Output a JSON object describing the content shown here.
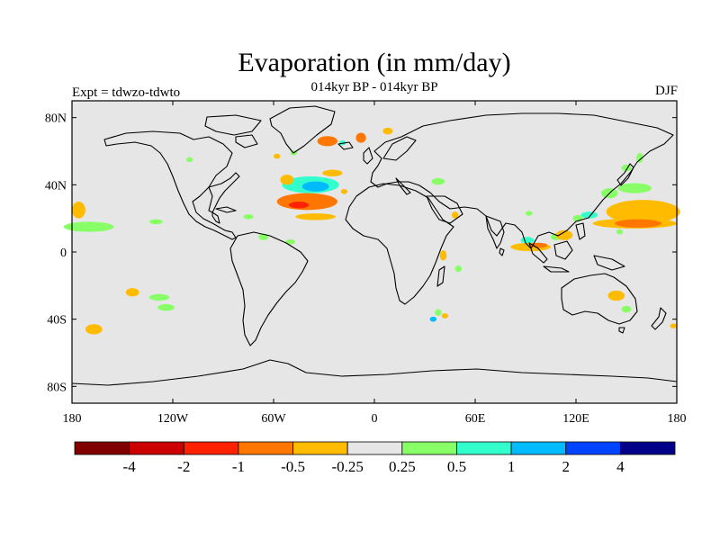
{
  "title": "Evaporation (in mm/day)",
  "subtitle": "014kyr BP - 014kyr BP",
  "left_label": "Expt = tdwzo-tdwto",
  "right_label": "DJF",
  "x_ticks": [
    {
      "label": "180",
      "value": -180
    },
    {
      "label": "120W",
      "value": -120
    },
    {
      "label": "60W",
      "value": -60
    },
    {
      "label": "0",
      "value": 0
    },
    {
      "label": "60E",
      "value": 60
    },
    {
      "label": "120E",
      "value": 120
    },
    {
      "label": "180",
      "value": 180
    }
  ],
  "y_ticks": [
    {
      "label": "80N",
      "value": 80
    },
    {
      "label": "40N",
      "value": 40
    },
    {
      "label": "0",
      "value": 0
    },
    {
      "label": "40S",
      "value": -40
    },
    {
      "label": "80S",
      "value": -80
    }
  ],
  "colorbar": {
    "colors": [
      "#800000",
      "#cc0000",
      "#ff2200",
      "#ff7700",
      "#ffbb00",
      "#e6e6e6",
      "#88ff66",
      "#33ffcc",
      "#00bbff",
      "#0044ff",
      "#000088"
    ],
    "labels": [
      "-4",
      "-2",
      "-1",
      "-0.5",
      "-0.25",
      "0.25",
      "0.5",
      "1",
      "2",
      "4"
    ]
  },
  "colors": {
    "land_ocean_fill": "#e6e6e6",
    "coast": "#000000"
  },
  "anomalies": [
    {
      "lon": -170,
      "lat": 15,
      "rx": 15,
      "ry": 3,
      "color": "#88ff66"
    },
    {
      "lon": -176,
      "lat": 25,
      "rx": 4,
      "ry": 5,
      "color": "#ffbb00"
    },
    {
      "lon": -130,
      "lat": 18,
      "rx": 4,
      "ry": 1.5,
      "color": "#88ff66"
    },
    {
      "lon": -144,
      "lat": -24,
      "rx": 4,
      "ry": 2.5,
      "color": "#ffbb00"
    },
    {
      "lon": -128,
      "lat": -27,
      "rx": 6,
      "ry": 2,
      "color": "#88ff66"
    },
    {
      "lon": -124,
      "lat": -33,
      "rx": 5,
      "ry": 2,
      "color": "#88ff66"
    },
    {
      "lon": -167,
      "lat": -46,
      "rx": 5,
      "ry": 3,
      "color": "#ffbb00"
    },
    {
      "lon": -75,
      "lat": 21,
      "rx": 3,
      "ry": 1.5,
      "color": "#88ff66"
    },
    {
      "lon": -66,
      "lat": 9,
      "rx": 3,
      "ry": 2,
      "color": "#88ff66"
    },
    {
      "lon": -50,
      "lat": 6,
      "rx": 3,
      "ry": 1.5,
      "color": "#88ff66"
    },
    {
      "lon": -40,
      "lat": 30,
      "rx": 18,
      "ry": 5,
      "color": "#ff7700"
    },
    {
      "lon": -45,
      "lat": 28,
      "rx": 6,
      "ry": 2,
      "color": "#ff2200"
    },
    {
      "lon": -38,
      "lat": 40,
      "rx": 17,
      "ry": 5,
      "color": "#33ffcc"
    },
    {
      "lon": -35,
      "lat": 39,
      "rx": 8,
      "ry": 3,
      "color": "#00bbff"
    },
    {
      "lon": -52,
      "lat": 43,
      "rx": 4,
      "ry": 3,
      "color": "#ffbb00"
    },
    {
      "lon": -25,
      "lat": 47,
      "rx": 6,
      "ry": 2,
      "color": "#ffbb00"
    },
    {
      "lon": -35,
      "lat": 21,
      "rx": 12,
      "ry": 2,
      "color": "#ffbb00"
    },
    {
      "lon": -28,
      "lat": 66,
      "rx": 6,
      "ry": 3,
      "color": "#ff7700"
    },
    {
      "lon": -8,
      "lat": 68,
      "rx": 3,
      "ry": 3,
      "color": "#ff7700"
    },
    {
      "lon": 8,
      "lat": 72,
      "rx": 3,
      "ry": 2,
      "color": "#ffbb00"
    },
    {
      "lon": -19,
      "lat": 65,
      "rx": 2,
      "ry": 1.5,
      "color": "#33ffcc"
    },
    {
      "lon": -48,
      "lat": 59,
      "rx": 2,
      "ry": 1.5,
      "color": "#88ff66"
    },
    {
      "lon": -58,
      "lat": 57,
      "rx": 2,
      "ry": 1.5,
      "color": "#ffbb00"
    },
    {
      "lon": -18,
      "lat": 36,
      "rx": 2,
      "ry": 1.5,
      "color": "#ffbb00"
    },
    {
      "lon": 38,
      "lat": 42,
      "rx": 4,
      "ry": 2,
      "color": "#88ff66"
    },
    {
      "lon": 48,
      "lat": 22,
      "rx": 2,
      "ry": 2,
      "color": "#ffbb00"
    },
    {
      "lon": 41,
      "lat": -2,
      "rx": 2,
      "ry": 3,
      "color": "#ffbb00"
    },
    {
      "lon": 50,
      "lat": -10,
      "rx": 2,
      "ry": 2,
      "color": "#88ff66"
    },
    {
      "lon": 38,
      "lat": -36,
      "rx": 2,
      "ry": 2,
      "color": "#88ff66"
    },
    {
      "lon": 42,
      "lat": -38,
      "rx": 2,
      "ry": 1.5,
      "color": "#ffbb00"
    },
    {
      "lon": 35,
      "lat": -40,
      "rx": 2,
      "ry": 1.5,
      "color": "#00bbff"
    },
    {
      "lon": 91,
      "lat": 7,
      "rx": 4,
      "ry": 2,
      "color": "#33ffcc"
    },
    {
      "lon": 93,
      "lat": 3,
      "rx": 12,
      "ry": 2.5,
      "color": "#ffbb00"
    },
    {
      "lon": 98,
      "lat": 4,
      "rx": 5,
      "ry": 1.5,
      "color": "#ff7700"
    },
    {
      "lon": 108,
      "lat": 9,
      "rx": 3,
      "ry": 2,
      "color": "#88ff66"
    },
    {
      "lon": 113,
      "lat": 10,
      "rx": 5,
      "ry": 3,
      "color": "#ffbb00"
    },
    {
      "lon": 121,
      "lat": 20,
      "rx": 3,
      "ry": 2,
      "color": "#88ff66"
    },
    {
      "lon": 128,
      "lat": 22,
      "rx": 5,
      "ry": 2,
      "color": "#33ffcc"
    },
    {
      "lon": 160,
      "lat": 24,
      "rx": 22,
      "ry": 7,
      "color": "#ffbb00"
    },
    {
      "lon": 155,
      "lat": 17,
      "rx": 25,
      "ry": 3,
      "color": "#ffbb00"
    },
    {
      "lon": 157,
      "lat": 17,
      "rx": 14,
      "ry": 2.5,
      "color": "#ff7700"
    },
    {
      "lon": 140,
      "lat": 35,
      "rx": 5,
      "ry": 3,
      "color": "#88ff66"
    },
    {
      "lon": 155,
      "lat": 38,
      "rx": 10,
      "ry": 3,
      "color": "#88ff66"
    },
    {
      "lon": 158,
      "lat": 56,
      "rx": 2,
      "ry": 3,
      "color": "#88ff66"
    },
    {
      "lon": 150,
      "lat": 50,
      "rx": 3,
      "ry": 2,
      "color": "#88ff66"
    },
    {
      "lon": 146,
      "lat": 12,
      "rx": 2,
      "ry": 1.5,
      "color": "#88ff66"
    },
    {
      "lon": 144,
      "lat": -26,
      "rx": 5,
      "ry": 3,
      "color": "#ffbb00"
    },
    {
      "lon": 150,
      "lat": -34,
      "rx": 3,
      "ry": 2,
      "color": "#88ff66"
    },
    {
      "lon": 178,
      "lat": -44,
      "rx": 2,
      "ry": 1.5,
      "color": "#ffbb00"
    },
    {
      "lon": -110,
      "lat": 55,
      "rx": 2,
      "ry": 1.5,
      "color": "#88ff66"
    },
    {
      "lon": 92,
      "lat": 23,
      "rx": 2,
      "ry": 1.5,
      "color": "#88ff66"
    }
  ]
}
